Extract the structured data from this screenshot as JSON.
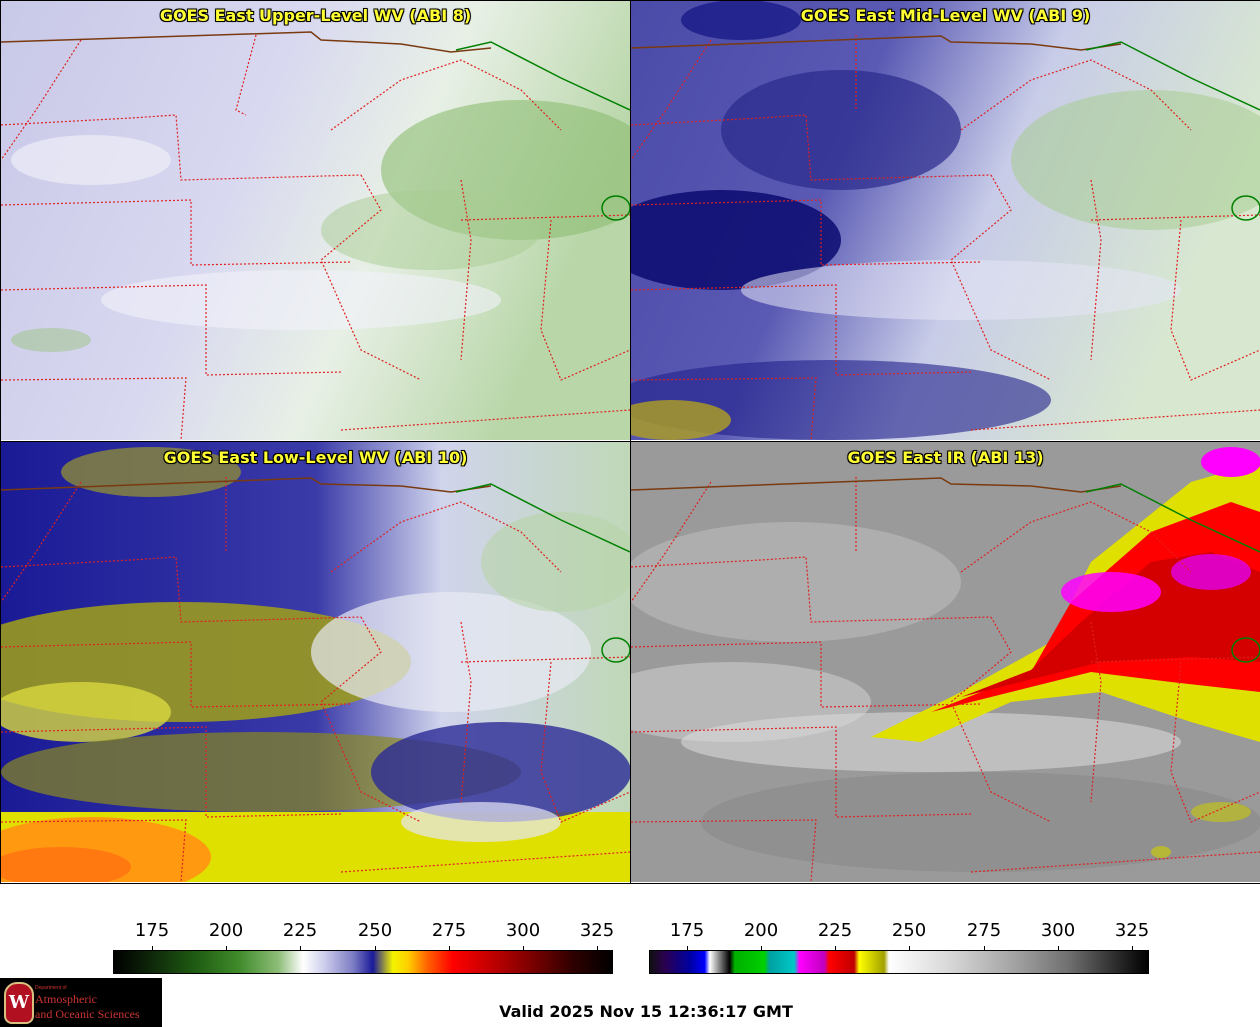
{
  "panels": [
    {
      "title": "GOES East Upper-Level WV (ABI 8)"
    },
    {
      "title": "GOES East Mid-Level WV (ABI 9)"
    },
    {
      "title": "GOES East Low-Level WV (ABI 10)"
    },
    {
      "title": "GOES East IR (ABI 13)"
    }
  ],
  "colorbars": {
    "left": {
      "ticks": [
        "175",
        "200",
        "225",
        "250",
        "275",
        "300",
        "325"
      ]
    },
    "right": {
      "ticks": [
        "175",
        "200",
        "225",
        "250",
        "275",
        "300",
        "325"
      ]
    }
  },
  "logo": {
    "dept": "Department of",
    "line1": "Atmospheric",
    "line2": "and Oceanic Sciences",
    "seal_letter": "W"
  },
  "valid_time": "Valid 2025 Nov 15 12:36:17 GMT",
  "colors": {
    "title_text": "#ffff33",
    "state_borders": "#e02020",
    "country_border": "#7a3a10",
    "lake_outline": "#008000"
  }
}
